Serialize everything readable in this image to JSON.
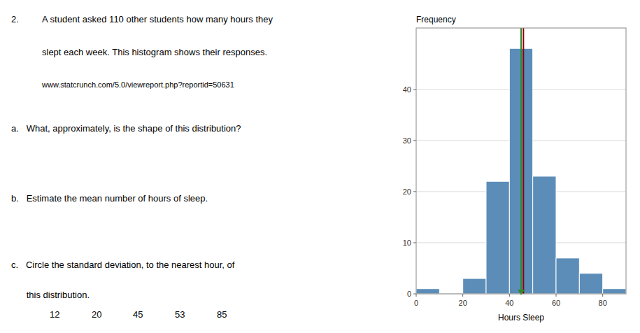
{
  "chart_data": {
    "type": "histogram",
    "title": "Frequency",
    "xlabel": "Hours Sleep",
    "bins": [
      0,
      10,
      20,
      30,
      40,
      50,
      60,
      70,
      80,
      90
    ],
    "values": [
      1,
      0,
      3,
      22,
      48,
      23,
      7,
      4,
      1
    ],
    "color": "#5b8db8",
    "xlim": [
      0,
      90
    ],
    "ylim": [
      0,
      52
    ],
    "xticks": [
      0,
      20,
      40,
      60,
      80
    ],
    "yticks": [
      0,
      10,
      20,
      30,
      40
    ],
    "grid": true,
    "lines": [
      {
        "x": 46,
        "color": "#8b0000"
      },
      {
        "x": 45,
        "color": "#2e8b2e"
      }
    ],
    "annotations": [
      "2.",
      "A student asked 110 other students how many hours they",
      "slept each week. This histogram shows their responses.",
      "www.statcrunch.com/5.0/viewreport.php?reportid=50631",
      "a.   What, approximately, is the shape of this distribution?",
      "b.   Estimate the mean number of hours of sleep.",
      "c.   Circle the standard deviation, to the nearest hour, of",
      "      this distribution.",
      "12",
      "20",
      "45",
      "53",
      "85"
    ]
  }
}
